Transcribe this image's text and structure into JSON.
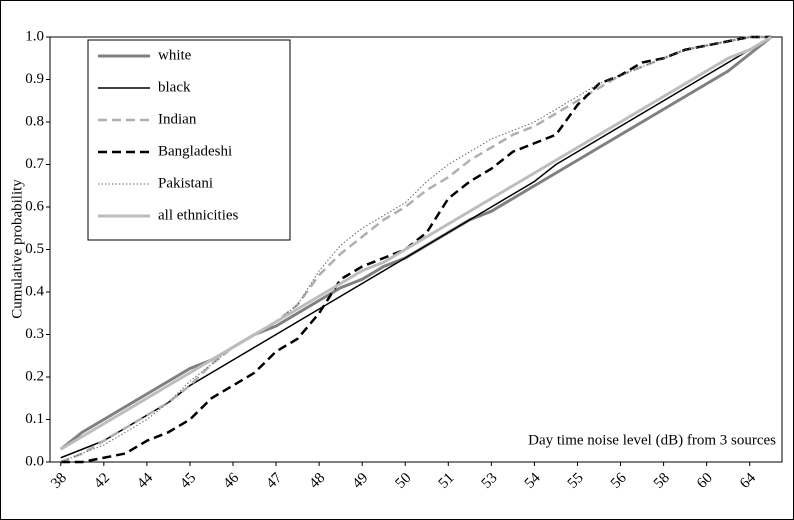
{
  "chart_data": {
    "type": "line",
    "ylabel": "Cumulative probability",
    "annotation": "Day time noise level (dB) from 3 sources",
    "categories": [
      "38",
      null,
      "42",
      null,
      "44",
      null,
      "45",
      null,
      "46",
      null,
      "47",
      null,
      "48",
      null,
      "49",
      null,
      "50",
      null,
      "51",
      null,
      "53",
      null,
      "54",
      null,
      "55",
      null,
      "56",
      null,
      "58",
      null,
      "60",
      null,
      "64",
      null
    ],
    "ylim": [
      0,
      1
    ],
    "yticks": [
      {
        "value": 0,
        "label": "0.0"
      },
      0.1,
      0.2,
      0.3,
      0.4,
      0.5,
      0.6,
      0.7,
      0.8,
      0.9,
      {
        "value": 1,
        "label": "1.0"
      }
    ],
    "grid": false,
    "legend": "top-left",
    "series": [
      {
        "name": "white",
        "color": "#808080",
        "style": "solid",
        "values": [
          0.03,
          0.07,
          0.1,
          0.13,
          0.16,
          0.19,
          0.22,
          0.24,
          0.27,
          0.3,
          0.32,
          0.35,
          0.38,
          0.41,
          0.43,
          0.46,
          0.48,
          0.51,
          0.54,
          0.57,
          0.59,
          0.62,
          0.65,
          0.68,
          0.71,
          0.74,
          0.77,
          0.8,
          0.83,
          0.86,
          0.89,
          0.92,
          0.96,
          1.0
        ]
      },
      {
        "name": "black",
        "color": "#000000",
        "style": "thin",
        "values": [
          0.01,
          0.03,
          0.05,
          0.08,
          0.11,
          0.14,
          0.18,
          0.21,
          0.24,
          0.27,
          0.3,
          0.33,
          0.36,
          0.39,
          0.42,
          0.45,
          0.48,
          0.51,
          0.54,
          0.57,
          0.6,
          0.63,
          0.66,
          0.7,
          0.73,
          0.76,
          0.79,
          0.82,
          0.85,
          0.88,
          0.91,
          0.94,
          0.97,
          1.0
        ]
      },
      {
        "name": "Indian",
        "color": "#b0b0b0",
        "style": "dashed",
        "values": [
          0.0,
          0.02,
          0.05,
          0.08,
          0.11,
          0.14,
          0.18,
          0.23,
          0.27,
          0.3,
          0.33,
          0.37,
          0.44,
          0.49,
          0.53,
          0.57,
          0.6,
          0.64,
          0.67,
          0.71,
          0.74,
          0.77,
          0.79,
          0.82,
          0.85,
          0.88,
          0.91,
          0.93,
          0.95,
          0.97,
          0.98,
          0.99,
          1.0,
          1.0
        ]
      },
      {
        "name": "Bangladeshi",
        "color": "#000000",
        "style": "dashed",
        "values": [
          0.0,
          0.0,
          0.01,
          0.02,
          0.05,
          0.07,
          0.1,
          0.15,
          0.18,
          0.21,
          0.26,
          0.29,
          0.35,
          0.43,
          0.46,
          0.48,
          0.5,
          0.54,
          0.62,
          0.66,
          0.69,
          0.73,
          0.75,
          0.77,
          0.84,
          0.89,
          0.91,
          0.94,
          0.95,
          0.97,
          0.98,
          0.99,
          1.0,
          1.0
        ]
      },
      {
        "name": "Pakistani",
        "color": "#666666",
        "style": "dotted",
        "values": [
          0.0,
          0.02,
          0.04,
          0.07,
          0.1,
          0.14,
          0.19,
          0.23,
          0.27,
          0.3,
          0.33,
          0.37,
          0.45,
          0.51,
          0.55,
          0.58,
          0.61,
          0.66,
          0.7,
          0.73,
          0.76,
          0.78,
          0.8,
          0.83,
          0.86,
          0.89,
          0.91,
          0.93,
          0.95,
          0.97,
          0.98,
          0.99,
          1.0,
          1.0
        ]
      },
      {
        "name": "all ethnicities",
        "color": "#bdbdbd",
        "style": "solid",
        "values": [
          0.03,
          0.06,
          0.09,
          0.12,
          0.15,
          0.18,
          0.21,
          0.24,
          0.27,
          0.3,
          0.33,
          0.36,
          0.39,
          0.42,
          0.45,
          0.47,
          0.5,
          0.53,
          0.56,
          0.59,
          0.62,
          0.65,
          0.68,
          0.71,
          0.74,
          0.77,
          0.8,
          0.83,
          0.86,
          0.89,
          0.92,
          0.95,
          0.97,
          1.0
        ]
      }
    ]
  }
}
